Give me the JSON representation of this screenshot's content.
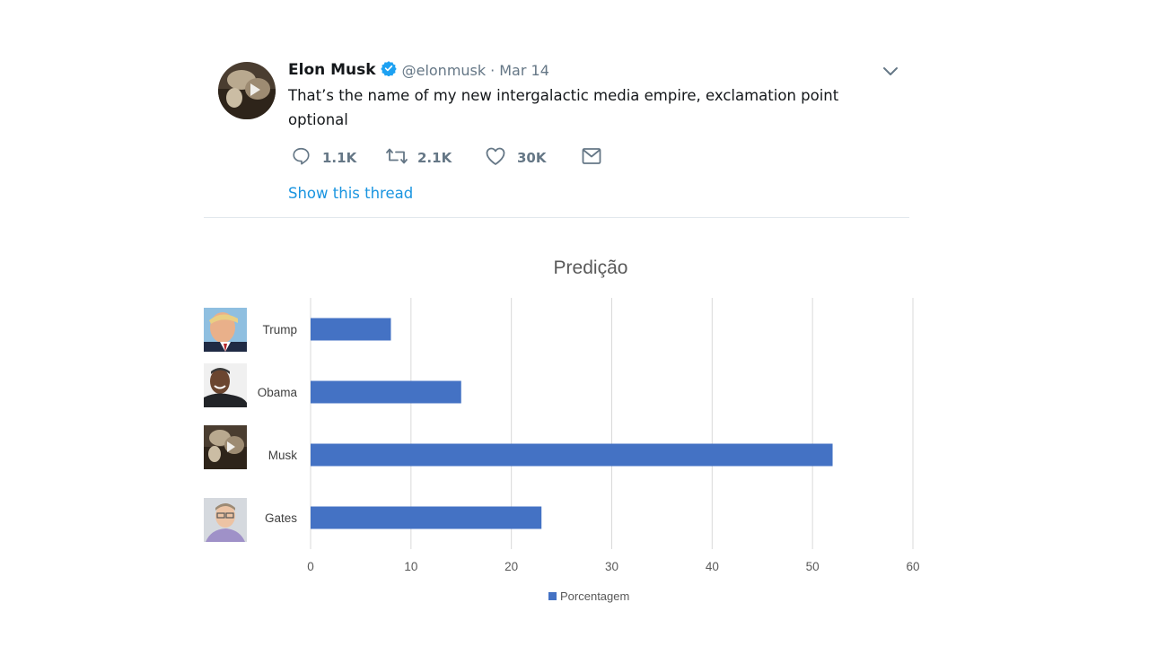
{
  "tweet": {
    "name": "Elon Musk",
    "handle": "@elonmusk",
    "separator": "·",
    "date": "Mar 14",
    "text": "That’s the name of my new intergalactic media empire, exclamation point optional",
    "actions": [
      {
        "icon": "reply-icon",
        "count": "1.1K"
      },
      {
        "icon": "retweet-icon",
        "count": "2.1K"
      },
      {
        "icon": "like-icon",
        "count": "30K"
      },
      {
        "icon": "message-icon",
        "count": ""
      }
    ],
    "thread_link": "Show this thread"
  },
  "chart_data": {
    "type": "bar",
    "orientation": "horizontal",
    "title": "Predição",
    "categories": [
      "Trump",
      "Obama",
      "Musk",
      "Gates"
    ],
    "series": [
      {
        "name": "Porcentagem",
        "values": [
          8,
          15,
          52,
          23
        ],
        "color": "#4472c4"
      }
    ],
    "xlim": [
      0,
      60
    ],
    "xticks": [
      "0",
      "10",
      "20",
      "30",
      "40",
      "50",
      "60"
    ],
    "grid": true,
    "legend": "bottom"
  },
  "images": {
    "Trump": "portrait-photo",
    "Obama": "portrait-photo",
    "Musk": "portrait-photo",
    "Gates": "portrait-photo"
  }
}
